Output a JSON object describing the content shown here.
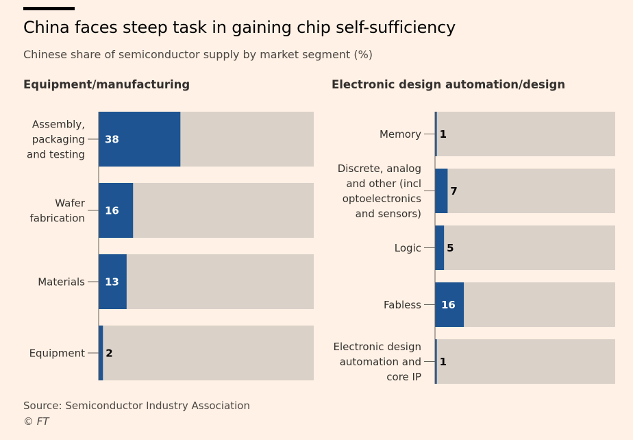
{
  "title": "China faces steep task in gaining chip self-sufficiency",
  "subtitle": "Chinese share of semiconductor supply by market segment (%)",
  "source": "Source:  Semiconductor Industry Association",
  "copyright": "© FT",
  "colors": {
    "background": "#FFF1E5",
    "bar_fill": "#1D5491",
    "bar_track": "#DAD1C9",
    "axis": "#66605C",
    "label_inside": "#FFFFFF",
    "label_outside": "#000000"
  },
  "chart_data": [
    {
      "type": "bar",
      "orientation": "horizontal",
      "title": "Equipment/manufacturing",
      "categories": [
        [
          "Assembly,",
          "packaging",
          "and testing"
        ],
        [
          "Wafer",
          "fabrication"
        ],
        [
          "Materials"
        ],
        [
          "Equipment"
        ]
      ],
      "values": [
        38,
        16,
        13,
        2
      ],
      "xlim": [
        0,
        100
      ]
    },
    {
      "type": "bar",
      "orientation": "horizontal",
      "title": "Electronic design automation/design",
      "categories": [
        [
          "Memory"
        ],
        [
          "Discrete, analog",
          "and other (incl",
          "optoelectronics",
          "and sensors)"
        ],
        [
          "Logic"
        ],
        [
          "Fabless"
        ],
        [
          "Electronic design",
          "automation and",
          "core IP"
        ]
      ],
      "values": [
        1,
        7,
        5,
        16,
        1
      ],
      "xlim": [
        0,
        100
      ]
    }
  ]
}
